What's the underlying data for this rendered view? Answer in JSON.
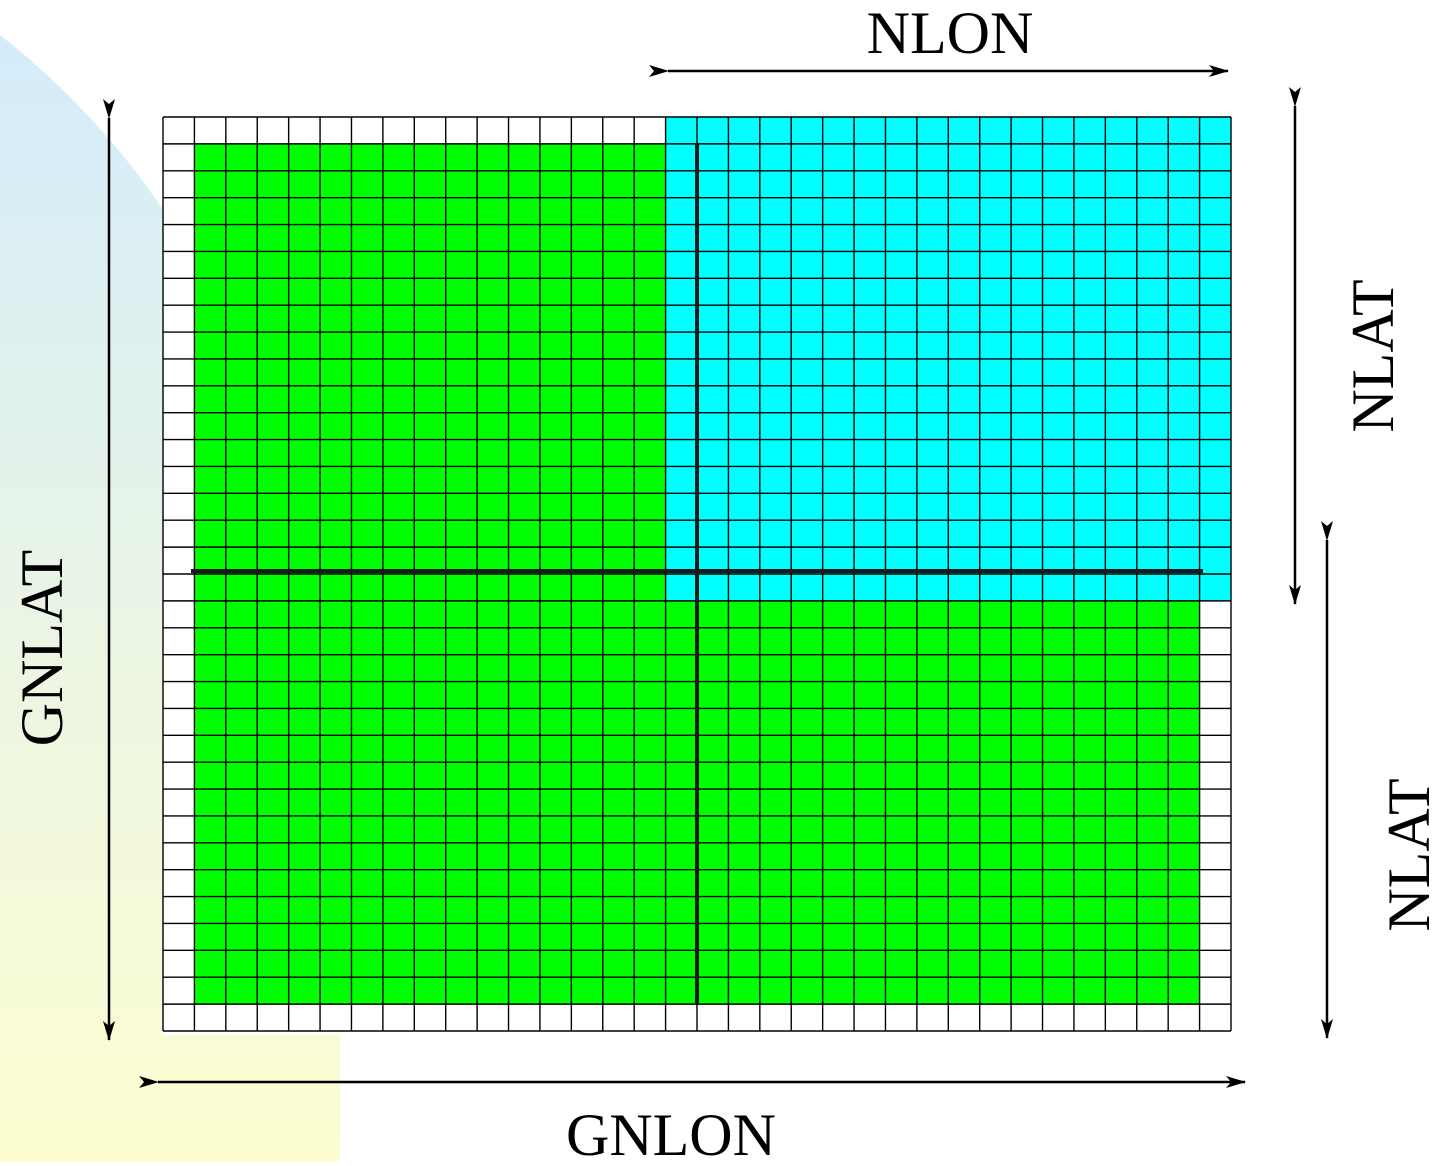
{
  "labels": {
    "nlon": "NLON",
    "nlat_upper": "NLAT",
    "nlat_lower": "NLAT",
    "gnlat": "GNLAT",
    "gnlon": "GNLON"
  },
  "grid": {
    "columns": 34,
    "rows": 34
  },
  "colors": {
    "halo": "#ffffff",
    "domain": "#00ff00",
    "subdomain": "#00ffff",
    "grid_line": "#000000",
    "background_top": "#d4ecfb",
    "background_bottom": "#fdfdd0"
  }
}
